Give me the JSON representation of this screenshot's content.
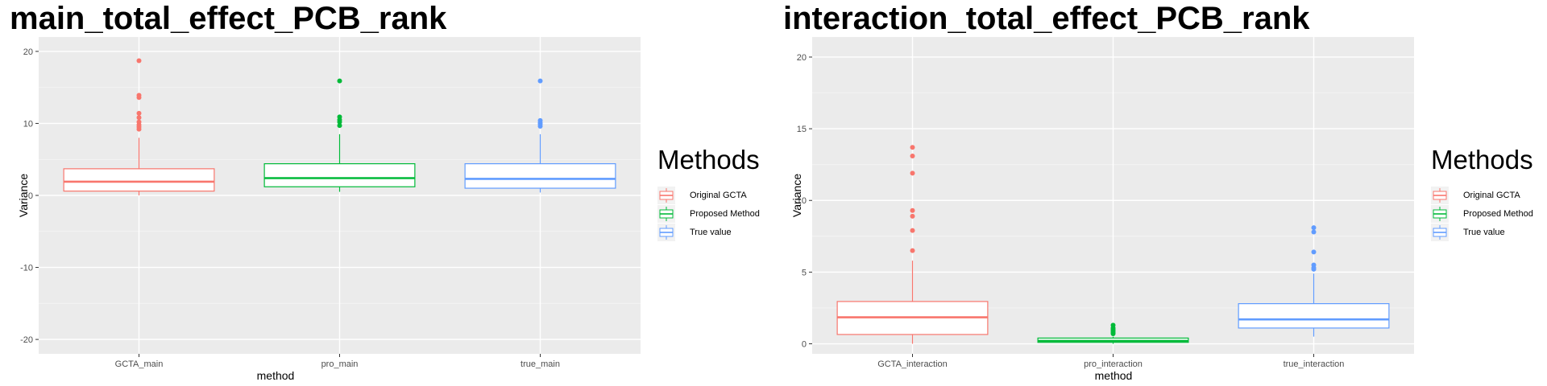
{
  "chart_data": [
    {
      "type": "boxplot",
      "title": "main_total_effect_PCB_rank",
      "xlabel": "method",
      "ylabel": "Variance",
      "ylim": [
        -22,
        22
      ],
      "yticks": [
        -20,
        -10,
        0,
        10,
        20
      ],
      "categories": [
        "GCTA_main",
        "pro_main",
        "true_main"
      ],
      "legend": {
        "title": "Methods",
        "entries": [
          "Original GCTA",
          "Proposed Method",
          "True value"
        ]
      },
      "colors": [
        "#F8766D",
        "#00BA38",
        "#619CFF"
      ],
      "boxes": [
        {
          "category": "GCTA_main",
          "min": 0.0,
          "q1": 0.6,
          "median": 1.9,
          "q3": 3.7,
          "max": 8.0,
          "outliers": [
            18.7,
            13.9,
            13.6,
            11.4,
            10.8,
            10.2,
            9.8,
            9.5,
            9.2
          ]
        },
        {
          "category": "pro_main",
          "min": 0.5,
          "q1": 1.2,
          "median": 2.4,
          "q3": 4.4,
          "max": 8.5,
          "outliers": [
            15.9,
            10.9,
            10.5,
            10.2,
            9.7
          ]
        },
        {
          "category": "true_main",
          "min": 0.4,
          "q1": 1.0,
          "median": 2.3,
          "q3": 4.4,
          "max": 8.5,
          "outliers": [
            15.9,
            10.4,
            10.1,
            9.9,
            9.6
          ]
        }
      ]
    },
    {
      "type": "boxplot",
      "title": "interaction_total_effect_PCB_rank",
      "xlabel": "method",
      "ylabel": "Variance",
      "ylim": [
        -0.7,
        21.4
      ],
      "yticks": [
        0,
        5,
        10,
        15,
        20
      ],
      "categories": [
        "GCTA_interaction",
        "pro_interaction",
        "true_interaction"
      ],
      "legend": {
        "title": "Methods",
        "entries": [
          "Original GCTA",
          "Proposed Method",
          "True value"
        ]
      },
      "colors": [
        "#F8766D",
        "#00BA38",
        "#619CFF"
      ],
      "boxes": [
        {
          "category": "GCTA_interaction",
          "min": 0.0,
          "q1": 0.65,
          "median": 1.85,
          "q3": 2.95,
          "max": 5.8,
          "outliers": [
            13.7,
            13.1,
            11.9,
            9.3,
            8.9,
            7.9,
            6.5
          ]
        },
        {
          "category": "pro_interaction",
          "min": 0.0,
          "q1": 0.1,
          "median": 0.2,
          "q3": 0.4,
          "max": 0.5,
          "outliers": [
            1.3,
            1.1,
            1.0,
            0.9,
            0.8,
            0.7
          ]
        },
        {
          "category": "true_interaction",
          "min": 0.5,
          "q1": 1.1,
          "median": 1.7,
          "q3": 2.8,
          "max": 4.9,
          "outliers": [
            8.1,
            7.8,
            6.4,
            5.5,
            5.3,
            5.2
          ]
        }
      ]
    }
  ]
}
